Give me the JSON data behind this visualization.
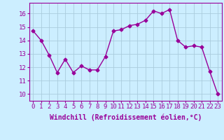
{
  "x": [
    0,
    1,
    2,
    3,
    4,
    5,
    6,
    7,
    8,
    9,
    10,
    11,
    12,
    13,
    14,
    15,
    16,
    17,
    18,
    19,
    20,
    21,
    22,
    23
  ],
  "y": [
    14.7,
    14.0,
    12.9,
    11.6,
    12.6,
    11.6,
    12.1,
    11.8,
    11.8,
    12.8,
    14.7,
    14.8,
    15.1,
    15.2,
    15.5,
    16.2,
    16.0,
    16.3,
    14.0,
    13.5,
    13.6,
    13.5,
    11.7,
    10.0
  ],
  "line_color": "#990099",
  "marker": "D",
  "marker_size": 2.5,
  "bg_color": "#cceeff",
  "grid_color": "#aaccdd",
  "xlabel": "Windchill (Refroidissement éolien,°C)",
  "xlabel_fontsize": 7,
  "xtick_labels": [
    "0",
    "1",
    "2",
    "3",
    "4",
    "5",
    "6",
    "7",
    "8",
    "9",
    "10",
    "11",
    "12",
    "13",
    "14",
    "15",
    "16",
    "17",
    "18",
    "19",
    "20",
    "21",
    "22",
    "23"
  ],
  "ytick_vals": [
    10,
    11,
    12,
    13,
    14,
    15,
    16
  ],
  "ylim": [
    9.5,
    16.8
  ],
  "xlim": [
    -0.5,
    23.5
  ],
  "tick_fontsize": 6.5,
  "linewidth": 1.0
}
